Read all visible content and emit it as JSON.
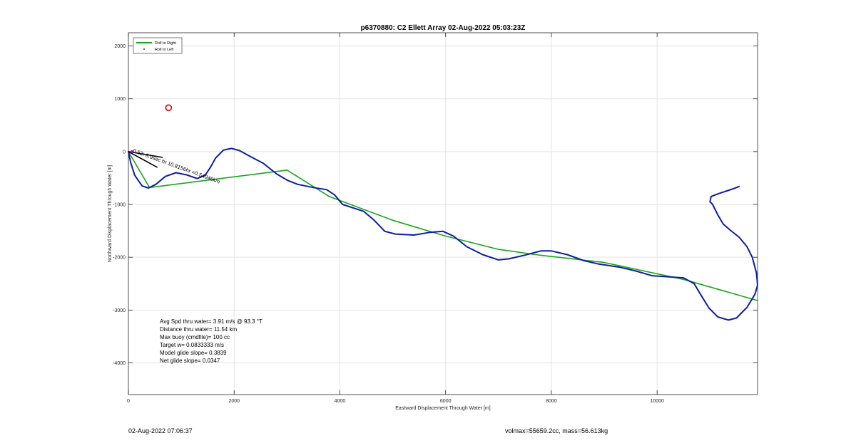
{
  "chart_data": {
    "type": "line",
    "title": "p6370880: C2 Ellett Array 02-Aug-2022 05:03:23Z",
    "xlabel": "Eastward Displacement Through Water [m]",
    "ylabel": "Northward Displacement Through Water [m]",
    "xlim": [
      0,
      11900
    ],
    "ylim": [
      -4600,
      2250
    ],
    "xticks": [
      0,
      2000,
      4000,
      6000,
      8000,
      10000
    ],
    "yticks": [
      -4000,
      -3000,
      -2000,
      -1000,
      0,
      1000,
      2000
    ],
    "grid": true,
    "legend_position": "top-left",
    "legend": [
      {
        "label": "Roll to Right",
        "color": "#1aa51a",
        "marker": "line"
      },
      {
        "label": "Roll to Left",
        "color": "#000000",
        "marker": "dot"
      }
    ],
    "series": [
      {
        "name": "Roll to Right",
        "color": "#1aa51a",
        "x": [
          0,
          400,
          3000,
          3800,
          5000,
          6000,
          7000,
          7700,
          9000,
          10500,
          11900
        ],
        "y": [
          0,
          -680,
          -350,
          -850,
          -1300,
          -1600,
          -1850,
          -1950,
          -2100,
          -2420,
          -2820
        ]
      },
      {
        "name": "trajectory",
        "color": "#0a1fa6",
        "x": [
          0,
          40,
          120,
          260,
          380,
          520,
          700,
          900,
          1100,
          1300,
          1450,
          1550,
          1650,
          1800,
          1950,
          2100,
          2300,
          2550,
          2800,
          3000,
          3200,
          3500,
          3750,
          3900,
          4050,
          4200,
          4450,
          4650,
          4850,
          5050,
          5400,
          5700,
          5950,
          6150,
          6400,
          6700,
          7000,
          7200,
          7500,
          7800,
          8000,
          8300,
          8600,
          8900,
          9300,
          9600,
          9900,
          10200,
          10500,
          10700,
          10850,
          10980,
          11150,
          11350,
          11500,
          11700,
          11850,
          11900,
          11880,
          11800,
          11700,
          11550,
          11400,
          11250,
          11150,
          11050,
          11000,
          11020,
          11150,
          11300,
          11450,
          11550
        ],
        "y": [
          0,
          -200,
          -450,
          -650,
          -690,
          -620,
          -470,
          -400,
          -440,
          -510,
          -450,
          -300,
          -120,
          30,
          60,
          20,
          -90,
          -220,
          -420,
          -540,
          -620,
          -680,
          -720,
          -820,
          -1000,
          -1050,
          -1130,
          -1300,
          -1510,
          -1560,
          -1580,
          -1530,
          -1510,
          -1600,
          -1800,
          -1950,
          -2050,
          -2030,
          -1960,
          -1880,
          -1880,
          -1950,
          -2060,
          -2130,
          -2190,
          -2260,
          -2350,
          -2370,
          -2390,
          -2500,
          -2750,
          -2960,
          -3130,
          -3190,
          -3150,
          -2950,
          -2700,
          -2530,
          -2300,
          -2000,
          -1800,
          -1620,
          -1500,
          -1370,
          -1200,
          -1000,
          -950,
          -850,
          -800,
          -750,
          -700,
          -660
        ]
      }
    ],
    "marker_circle": {
      "x": 760,
      "y": 830,
      "color": "#d40000"
    },
    "annotation_rotated": {
      "text": "0.52: 8.9sec hr 10.8156hr =0.54046km",
      "x": 80,
      "y": -10,
      "angle_deg": 20
    },
    "current_vectors": [
      {
        "x0": 0,
        "y0": 0,
        "x1": 650,
        "y1": -110
      },
      {
        "x0": 0,
        "y0": 0,
        "x1": 550,
        "y1": -300
      }
    ],
    "stats_lines": [
      "Avg Spd thru water=  3.91 m/s @  93.3 °T",
      "Distance thru water= 11.54 km",
      "Max buoy (cmdfile)= 100 cc",
      "Target w= 0.0833333 m/s",
      "Model glide slope= 0.3839",
      "Net glide slope= 0.0347"
    ]
  },
  "footer": {
    "left": "02-Aug-2022 07:06:37",
    "right": "volmax=55659.2cc, mass=56.613kg"
  }
}
